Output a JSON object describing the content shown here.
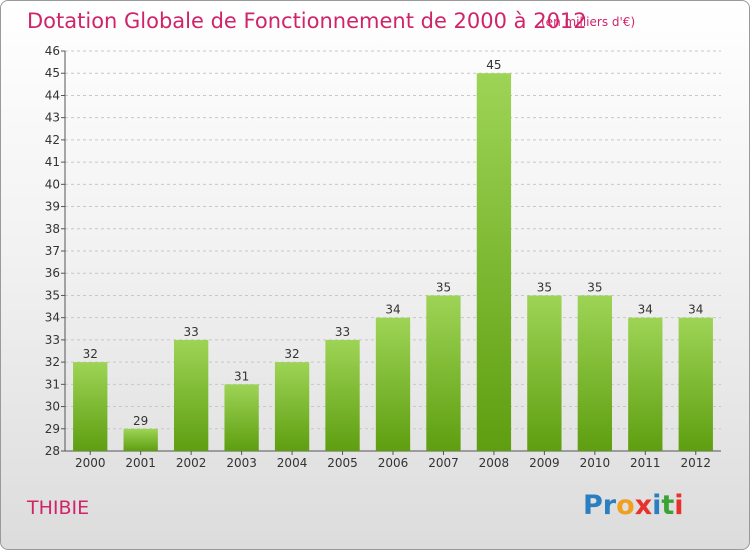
{
  "header": {
    "title": "Dotation Globale de Fonctionnement de 2000 à 2012",
    "unit": "(en milliers d'€)"
  },
  "commune": "THIBIE",
  "logo": {
    "text": "Proxiti",
    "colors": [
      "#2a7fc1",
      "#2a7fc1",
      "#f0a020",
      "#e8312d",
      "#2a7fc1",
      "#3aa335",
      "#e8312d"
    ]
  },
  "colors": {
    "bar_top": "#9ed456",
    "bar_bottom": "#5e9e10",
    "accent": "#d0246a"
  },
  "chart_data": {
    "type": "bar",
    "categories": [
      "2000",
      "2001",
      "2002",
      "2003",
      "2004",
      "2005",
      "2006",
      "2007",
      "2008",
      "2009",
      "2010",
      "2011",
      "2012"
    ],
    "values": [
      32,
      29,
      33,
      31,
      32,
      33,
      34,
      35,
      45,
      35,
      35,
      34,
      34
    ],
    "ylim": [
      28,
      46
    ],
    "yticks": [
      28,
      29,
      30,
      31,
      32,
      33,
      34,
      35,
      36,
      37,
      38,
      39,
      40,
      41,
      42,
      43,
      44,
      45,
      46
    ],
    "xlabel": "",
    "ylabel": "",
    "grid": true,
    "data_labels": true
  }
}
